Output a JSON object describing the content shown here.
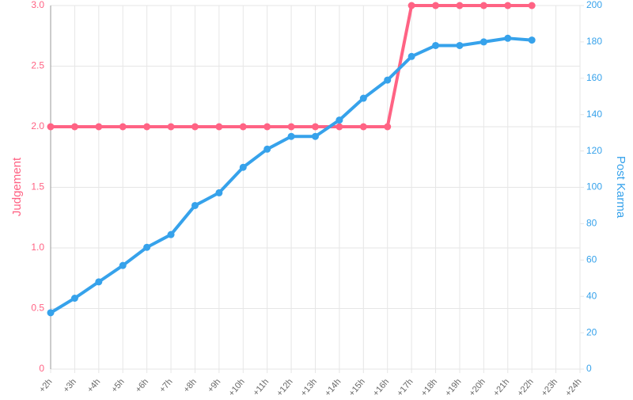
{
  "chart_data": {
    "type": "line",
    "categories": [
      "+2h",
      "+3h",
      "+4h",
      "+5h",
      "+6h",
      "+7h",
      "+8h",
      "+9h",
      "+10h",
      "+11h",
      "+12h",
      "+13h",
      "+14h",
      "+15h",
      "+16h",
      "+17h",
      "+18h",
      "+19h",
      "+20h",
      "+21h",
      "+22h",
      "+23h",
      "+24h"
    ],
    "ylabel": "Judgement",
    "y2label": "Post Karma",
    "ylim": [
      0,
      3
    ],
    "yticks": [
      0,
      0.5,
      {
        "value": 1,
        "label": "1.0"
      },
      1.5,
      {
        "value": 2,
        "label": "2.0"
      },
      2.5,
      {
        "value": 3,
        "label": "3.0"
      }
    ],
    "y2lim": [
      0,
      200
    ],
    "y2ticks": [
      0,
      20,
      40,
      60,
      80,
      100,
      120,
      140,
      160,
      180,
      200
    ],
    "grid": true,
    "series": [
      {
        "name": "Judgement",
        "color": "#ff6384",
        "axis": "y",
        "values": [
          2,
          2,
          2,
          2,
          2,
          2,
          2,
          2,
          2,
          2,
          2,
          2,
          2,
          2,
          2,
          3,
          3,
          3,
          3,
          3,
          3,
          null,
          null
        ]
      },
      {
        "name": "Post Karma",
        "color": "#36a2eb",
        "axis": "y2",
        "values": [
          31,
          39,
          48,
          57,
          67,
          74,
          90,
          97,
          111,
          121,
          128,
          128,
          137,
          149,
          159,
          172,
          178,
          178,
          180,
          182,
          181,
          null,
          null
        ]
      }
    ]
  }
}
